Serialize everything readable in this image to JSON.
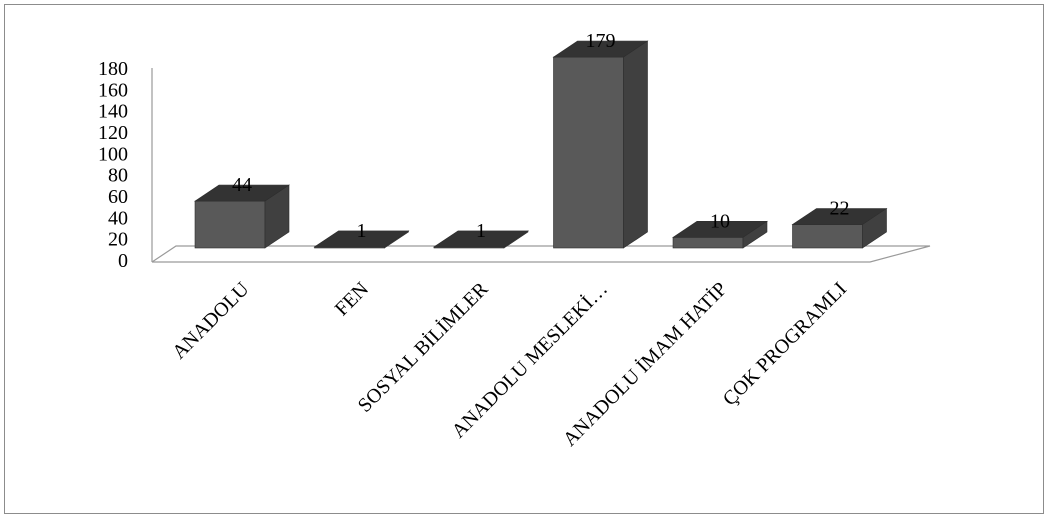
{
  "chart_data": {
    "type": "bar",
    "title": "",
    "xlabel": "",
    "ylabel": "",
    "categories": [
      "ANADOLU",
      "FEN",
      "SOSYAL BİLİMLER",
      "ANADOLU MESLEKİ…",
      "ANADOLU İMAM HATİP",
      "ÇOK PROGRAMLI"
    ],
    "values": [
      44,
      1,
      1,
      179,
      10,
      22
    ],
    "data_labels": [
      "44",
      "1",
      "1",
      "179",
      "10",
      "22"
    ],
    "ylim": [
      0,
      180
    ],
    "yticks": [
      0,
      20,
      40,
      60,
      80,
      100,
      120,
      140,
      160,
      180
    ],
    "style": "3d-column",
    "grid": false,
    "legend": "none",
    "colors": {
      "bar_front": "#595959",
      "bar_side": "#404040",
      "bar_top": "#333333",
      "axis": "#9a9a9a"
    }
  }
}
